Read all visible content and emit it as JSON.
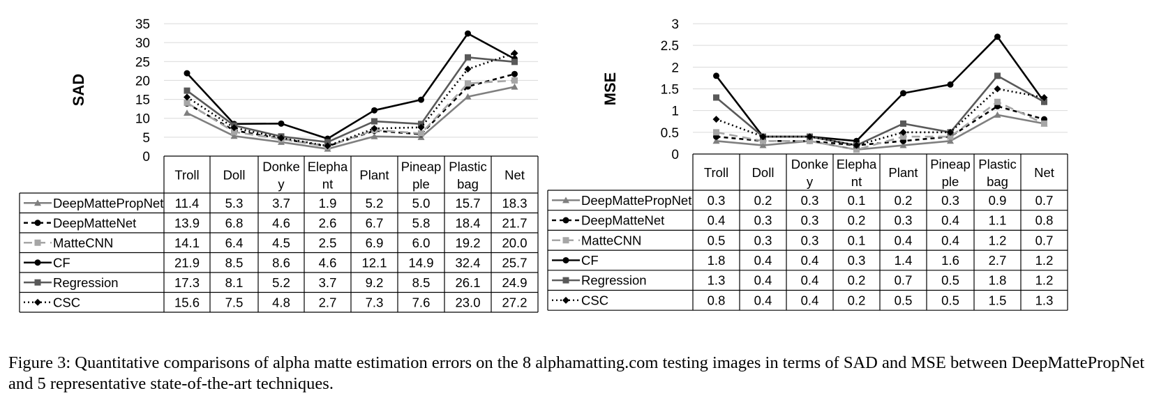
{
  "categories": [
    "Troll",
    "Doll",
    "Donkey",
    "Elephant",
    "Plant",
    "Pineapple",
    "Plastic bag",
    "Net"
  ],
  "category_header_lines": [
    [
      "Troll"
    ],
    [
      "Doll"
    ],
    [
      "Donke",
      "y"
    ],
    [
      "Elepha",
      "nt"
    ],
    [
      "Plant"
    ],
    [
      "Pineap",
      "ple"
    ],
    [
      "Plastic",
      "bag"
    ],
    [
      "Net"
    ]
  ],
  "series_styles": [
    {
      "name": "DeepMattePropNet",
      "color": "#7f7f7f",
      "dash": "",
      "marker": "triangle"
    },
    {
      "name": "DeepMatteNet",
      "color": "#000000",
      "dash": "6,5",
      "marker": "circle"
    },
    {
      "name": "MatteCNN",
      "color": "#a6a6a6",
      "dash": "12,7",
      "marker": "square"
    },
    {
      "name": "CF",
      "color": "#000000",
      "dash": "",
      "marker": "circle"
    },
    {
      "name": "Regression",
      "color": "#595959",
      "dash": "",
      "marker": "square"
    },
    {
      "name": "CSC",
      "color": "#000000",
      "dash": "2,4",
      "marker": "diamond"
    }
  ],
  "chart_data": [
    {
      "type": "line",
      "ylabel": "SAD",
      "xlabel": "",
      "ylim": [
        0,
        35
      ],
      "yticks": [
        "0",
        "5",
        "10",
        "15",
        "20",
        "25",
        "30",
        "35"
      ],
      "grid": "horizontal",
      "legend": "data-table",
      "categories": [
        "Troll",
        "Doll",
        "Donkey",
        "Elephant",
        "Plant",
        "Pineapple",
        "Plastic bag",
        "Net"
      ],
      "series": [
        {
          "name": "DeepMattePropNet",
          "values": [
            11.4,
            5.3,
            3.7,
            1.9,
            5.2,
            5.0,
            15.7,
            18.3
          ],
          "labels": [
            "11.4",
            "5.3",
            "3.7",
            "1.9",
            "5.2",
            "5.0",
            "15.7",
            "18.3"
          ]
        },
        {
          "name": "DeepMatteNet",
          "values": [
            13.9,
            6.8,
            4.6,
            2.6,
            6.7,
            5.8,
            18.4,
            21.7
          ],
          "labels": [
            "13.9",
            "6.8",
            "4.6",
            "2.6",
            "6.7",
            "5.8",
            "18.4",
            "21.7"
          ]
        },
        {
          "name": "MatteCNN",
          "values": [
            14.1,
            6.4,
            4.5,
            2.5,
            6.9,
            6.0,
            19.2,
            20.0
          ],
          "labels": [
            "14.1",
            "6.4",
            "4.5",
            "2.5",
            "6.9",
            "6.0",
            "19.2",
            "20.0"
          ]
        },
        {
          "name": "CF",
          "values": [
            21.9,
            8.5,
            8.6,
            4.6,
            12.1,
            14.9,
            32.4,
            25.7
          ],
          "labels": [
            "21.9",
            "8.5",
            "8.6",
            "4.6",
            "12.1",
            "14.9",
            "32.4",
            "25.7"
          ]
        },
        {
          "name": "Regression",
          "values": [
            17.3,
            8.1,
            5.2,
            3.7,
            9.2,
            8.5,
            26.1,
            24.9
          ],
          "labels": [
            "17.3",
            "8.1",
            "5.2",
            "3.7",
            "9.2",
            "8.5",
            "26.1",
            "24.9"
          ]
        },
        {
          "name": "CSC",
          "values": [
            15.6,
            7.5,
            4.8,
            2.7,
            7.3,
            7.6,
            23.0,
            27.2
          ],
          "labels": [
            "15.6",
            "7.5",
            "4.8",
            "2.7",
            "7.3",
            "7.6",
            "23.0",
            "27.2"
          ]
        }
      ]
    },
    {
      "type": "line",
      "ylabel": "MSE",
      "xlabel": "",
      "ylim": [
        0,
        3
      ],
      "yticks": [
        "0",
        "0.5",
        "1",
        "1.5",
        "2",
        "2.5",
        "3"
      ],
      "grid": "horizontal",
      "legend": "data-table",
      "categories": [
        "Troll",
        "Doll",
        "Donkey",
        "Elephant",
        "Plant",
        "Pineapple",
        "Plastic bag",
        "Net"
      ],
      "series": [
        {
          "name": "DeepMattePropNet",
          "values": [
            0.3,
            0.2,
            0.3,
            0.1,
            0.2,
            0.3,
            0.9,
            0.7
          ],
          "labels": [
            "0.3",
            "0.2",
            "0.3",
            "0.1",
            "0.2",
            "0.3",
            "0.9",
            "0.7"
          ]
        },
        {
          "name": "DeepMatteNet",
          "values": [
            0.4,
            0.3,
            0.3,
            0.2,
            0.3,
            0.4,
            1.1,
            0.8
          ],
          "labels": [
            "0.4",
            "0.3",
            "0.3",
            "0.2",
            "0.3",
            "0.4",
            "1.1",
            "0.8"
          ]
        },
        {
          "name": "MatteCNN",
          "values": [
            0.5,
            0.3,
            0.3,
            0.1,
            0.4,
            0.4,
            1.2,
            0.7
          ],
          "labels": [
            "0.5",
            "0.3",
            "0.3",
            "0.1",
            "0.4",
            "0.4",
            "1.2",
            "0.7"
          ]
        },
        {
          "name": "CF",
          "values": [
            1.8,
            0.4,
            0.4,
            0.3,
            1.4,
            1.6,
            2.7,
            1.2
          ],
          "labels": [
            "1.8",
            "0.4",
            "0.4",
            "0.3",
            "1.4",
            "1.6",
            "2.7",
            "1.2"
          ]
        },
        {
          "name": "Regression",
          "values": [
            1.3,
            0.4,
            0.4,
            0.2,
            0.7,
            0.5,
            1.8,
            1.2
          ],
          "labels": [
            "1.3",
            "0.4",
            "0.4",
            "0.2",
            "0.7",
            "0.5",
            "1.8",
            "1.2"
          ]
        },
        {
          "name": "CSC",
          "values": [
            0.8,
            0.4,
            0.4,
            0.2,
            0.5,
            0.5,
            1.5,
            1.3
          ],
          "labels": [
            "0.8",
            "0.4",
            "0.4",
            "0.2",
            "0.5",
            "0.5",
            "1.5",
            "1.3"
          ]
        }
      ]
    }
  ],
  "caption": "Figure 3: Quantitative comparisons of alpha matte estimation errors on the 8 alphamatting.com testing images in terms of SAD and MSE between DeepMattePropNet and 5 representative state-of-the-art techniques."
}
